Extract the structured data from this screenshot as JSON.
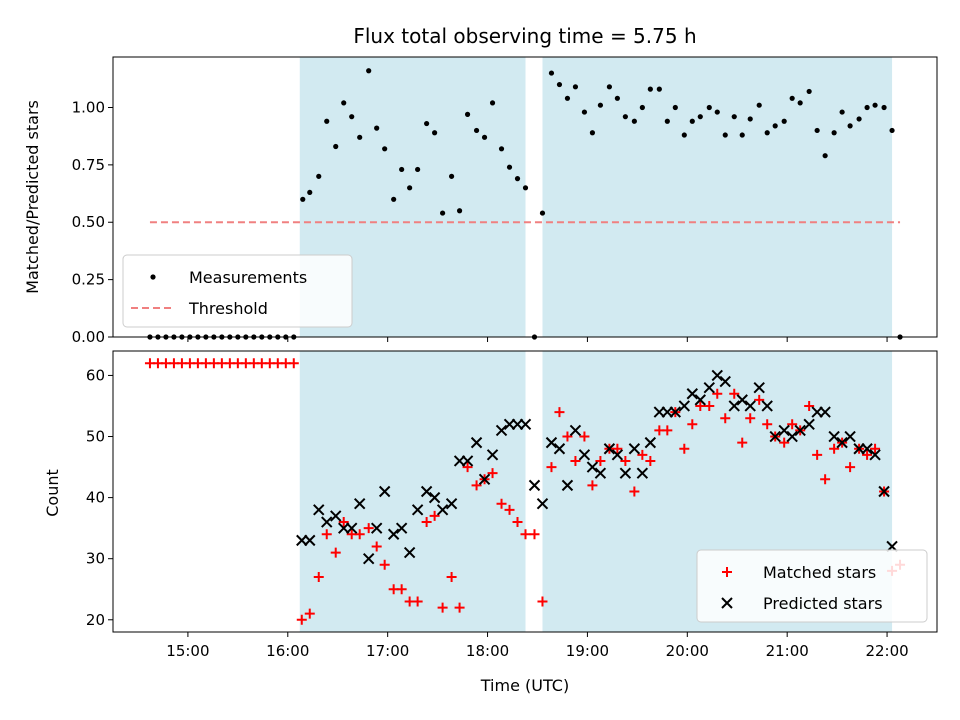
{
  "chart_data": [
    {
      "type": "scatter",
      "title": "Flux total observing time = 5.75 h",
      "xlabel": "",
      "ylabel": "Matched/Predicted stars",
      "xlim": [
        14.25,
        22.5
      ],
      "ylim": [
        0.0,
        1.22
      ],
      "yticks": [
        0.0,
        0.25,
        0.5,
        0.75,
        1.0
      ],
      "ytick_labels": [
        "0.00",
        "0.25",
        "0.50",
        "0.75",
        "1.00"
      ],
      "shaded_intervals": [
        [
          16.12,
          18.38
        ],
        [
          18.55,
          22.05
        ]
      ],
      "shade_color": "#add8e6",
      "series": [
        {
          "name": "Measurements",
          "marker": "dot",
          "color": "#000000",
          "x": [
            14.62,
            14.7,
            14.78,
            14.86,
            14.94,
            15.02,
            15.1,
            15.18,
            15.26,
            15.34,
            15.42,
            15.5,
            15.58,
            15.66,
            15.74,
            15.82,
            15.9,
            15.98,
            16.06,
            16.15,
            16.22,
            16.31,
            16.39,
            16.48,
            16.56,
            16.64,
            16.72,
            16.81,
            16.89,
            16.97,
            17.06,
            17.14,
            17.22,
            17.3,
            17.39,
            17.47,
            17.55,
            17.64,
            17.72,
            17.8,
            17.89,
            17.97,
            18.05,
            18.14,
            18.22,
            18.3,
            18.38,
            18.47,
            18.55,
            18.64,
            18.72,
            18.8,
            18.88,
            18.97,
            19.05,
            19.13,
            19.22,
            19.3,
            19.38,
            19.47,
            19.55,
            19.63,
            19.72,
            19.8,
            19.88,
            19.97,
            20.05,
            20.13,
            20.22,
            20.3,
            20.38,
            20.47,
            20.55,
            20.63,
            20.72,
            20.8,
            20.88,
            20.97,
            21.05,
            21.13,
            21.22,
            21.3,
            21.38,
            21.47,
            21.55,
            21.63,
            21.72,
            21.8,
            21.88,
            21.97,
            22.05,
            22.13
          ],
          "y": [
            0,
            0,
            0,
            0,
            0,
            0,
            0,
            0,
            0,
            0,
            0,
            0,
            0,
            0,
            0,
            0,
            0,
            0,
            0,
            0.6,
            0.63,
            0.7,
            0.94,
            0.83,
            1.02,
            0.96,
            0.87,
            1.16,
            0.91,
            0.82,
            0.6,
            0.73,
            0.65,
            0.73,
            0.93,
            0.89,
            0.54,
            0.7,
            0.55,
            0.97,
            0.9,
            0.87,
            1.02,
            0.82,
            0.74,
            0.69,
            0.65,
            0.0,
            0.54,
            1.15,
            1.1,
            1.04,
            1.09,
            0.98,
            0.89,
            1.01,
            1.09,
            1.04,
            0.96,
            0.94,
            1.0,
            1.08,
            1.08,
            0.94,
            1.0,
            0.88,
            0.94,
            0.96,
            1.0,
            0.98,
            0.88,
            0.96,
            0.88,
            0.95,
            1.01,
            0.89,
            0.92,
            0.94,
            1.04,
            1.02,
            1.07,
            0.9,
            0.79,
            0.89,
            0.98,
            0.92,
            0.95,
            1.0,
            1.01,
            1.0,
            0.9,
            0.0
          ]
        },
        {
          "name": "Threshold",
          "style": "dashed-line",
          "color": "#f08080",
          "x": [
            14.62,
            22.13
          ],
          "y": [
            0.5,
            0.5
          ]
        }
      ],
      "legend": {
        "position": "lower-left",
        "entries": [
          "Measurements",
          "Threshold"
        ]
      }
    },
    {
      "type": "scatter",
      "title": "",
      "xlabel": "Time (UTC)",
      "ylabel": "Count",
      "xlim": [
        14.25,
        22.5
      ],
      "ylim": [
        18,
        64
      ],
      "yticks": [
        20,
        30,
        40,
        50,
        60
      ],
      "ytick_labels": [
        "20",
        "30",
        "40",
        "50",
        "60"
      ],
      "xticks": [
        15,
        16,
        17,
        18,
        19,
        20,
        21,
        22
      ],
      "xtick_labels": [
        "15:00",
        "16:00",
        "17:00",
        "18:00",
        "19:00",
        "20:00",
        "21:00",
        "22:00"
      ],
      "shaded_intervals": [
        [
          16.12,
          18.38
        ],
        [
          18.55,
          22.05
        ]
      ],
      "shade_color": "#add8e6",
      "series": [
        {
          "name": "Matched stars",
          "marker": "plus",
          "color": "#ff0000",
          "x": [
            14.62,
            14.7,
            14.78,
            14.86,
            14.94,
            15.02,
            15.1,
            15.18,
            15.26,
            15.34,
            15.42,
            15.5,
            15.58,
            15.66,
            15.74,
            15.82,
            15.9,
            15.98,
            16.06,
            16.14,
            16.22,
            16.31,
            16.39,
            16.48,
            16.56,
            16.64,
            16.72,
            16.81,
            16.89,
            16.97,
            17.06,
            17.14,
            17.22,
            17.3,
            17.39,
            17.47,
            17.55,
            17.64,
            17.72,
            17.8,
            17.89,
            17.97,
            18.05,
            18.14,
            18.22,
            18.3,
            18.38,
            18.47,
            18.55,
            18.64,
            18.72,
            18.8,
            18.88,
            18.97,
            19.05,
            19.13,
            19.22,
            19.3,
            19.38,
            19.47,
            19.55,
            19.63,
            19.72,
            19.8,
            19.88,
            19.97,
            20.05,
            20.13,
            20.22,
            20.3,
            20.38,
            20.47,
            20.55,
            20.63,
            20.72,
            20.8,
            20.88,
            20.97,
            21.05,
            21.13,
            21.22,
            21.3,
            21.38,
            21.47,
            21.55,
            21.63,
            21.72,
            21.8,
            21.88,
            21.97,
            22.05,
            22.13
          ],
          "y": [
            62,
            62,
            62,
            62,
            62,
            62,
            62,
            62,
            62,
            62,
            62,
            62,
            62,
            62,
            62,
            62,
            62,
            62,
            62,
            20,
            21,
            27,
            34,
            31,
            36,
            34,
            34,
            35,
            32,
            29,
            25,
            25,
            23,
            23,
            36,
            37,
            22,
            27,
            22,
            45,
            42,
            43,
            44,
            39,
            38,
            36,
            34,
            34,
            23,
            45,
            54,
            50,
            46,
            50,
            42,
            46,
            48,
            48,
            46,
            41,
            47,
            46,
            51,
            51,
            54,
            48,
            52,
            55,
            55,
            57,
            53,
            57,
            49,
            53,
            56,
            52,
            50,
            49,
            52,
            51,
            55,
            47,
            43,
            48,
            49,
            45,
            48,
            47,
            48,
            41,
            28,
            29
          ]
        },
        {
          "name": "Predicted stars",
          "marker": "x",
          "color": "#000000",
          "x": [
            16.14,
            16.22,
            16.31,
            16.39,
            16.48,
            16.56,
            16.64,
            16.72,
            16.81,
            16.89,
            16.97,
            17.06,
            17.14,
            17.22,
            17.3,
            17.39,
            17.47,
            17.55,
            17.64,
            17.72,
            17.8,
            17.89,
            17.97,
            18.05,
            18.14,
            18.22,
            18.3,
            18.38,
            18.47,
            18.55,
            18.64,
            18.72,
            18.8,
            18.88,
            18.97,
            19.05,
            19.13,
            19.22,
            19.3,
            19.38,
            19.47,
            19.55,
            19.63,
            19.72,
            19.8,
            19.88,
            19.97,
            20.05,
            20.13,
            20.22,
            20.3,
            20.38,
            20.47,
            20.55,
            20.63,
            20.72,
            20.8,
            20.88,
            20.97,
            21.05,
            21.13,
            21.22,
            21.3,
            21.38,
            21.47,
            21.55,
            21.63,
            21.72,
            21.8,
            21.88,
            21.97,
            22.05
          ],
          "y": [
            33,
            33,
            38,
            36,
            37,
            35,
            35,
            39,
            30,
            35,
            41,
            34,
            35,
            31,
            38,
            41,
            40,
            38,
            39,
            46,
            46,
            49,
            43,
            47,
            51,
            52,
            52,
            52,
            42,
            39,
            49,
            48,
            42,
            51,
            47,
            45,
            44,
            48,
            47,
            44,
            48,
            44,
            49,
            54,
            54,
            54,
            55,
            57,
            56,
            58,
            60,
            59,
            55,
            56,
            55,
            58,
            55,
            50,
            51,
            50,
            51,
            52,
            54,
            54,
            50,
            49,
            50,
            48,
            48,
            47,
            41,
            32
          ]
        }
      ],
      "legend": {
        "position": "lower-right",
        "entries": [
          "Matched stars",
          "Predicted stars"
        ]
      }
    }
  ]
}
